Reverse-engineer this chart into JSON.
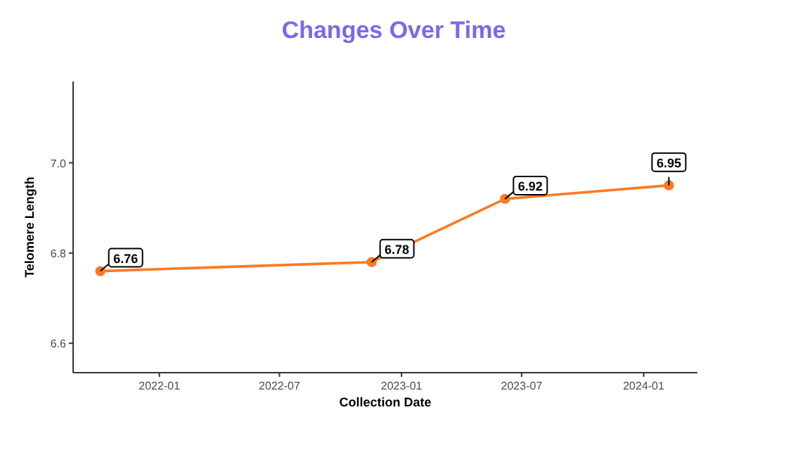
{
  "chart_data": {
    "type": "line",
    "title": "Changes Over Time",
    "xlabel": "Collection Date",
    "ylabel": "Telomere Length",
    "x": [
      "2021-10-04",
      "2022-11-17",
      "2023-06-06",
      "2024-02-08"
    ],
    "series": [
      {
        "color": "#fa7a22",
        "values": [
          6.76,
          6.78,
          6.92,
          6.95
        ]
      }
    ],
    "xlim": [
      "2021-08-24",
      "2024-03-22"
    ],
    "xticks": [
      "2022-01",
      "2022-07",
      "2023-01",
      "2023-07",
      "2024-01"
    ],
    "ylim": [
      6.535,
      7.18
    ],
    "yticks": [
      {
        "value": 6.6,
        "label": "6.6"
      },
      {
        "value": 6.8,
        "label": "6.8"
      },
      {
        "value": 7,
        "label": "7.0"
      }
    ],
    "data_labels": true,
    "marker": "circle",
    "line_style": "solid",
    "grid": false
  }
}
